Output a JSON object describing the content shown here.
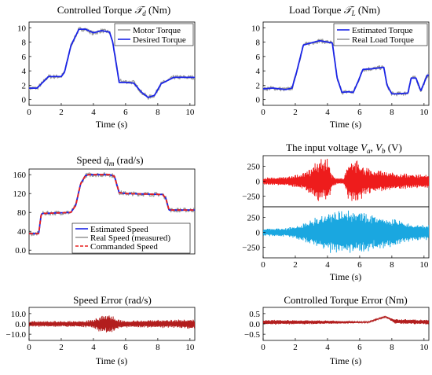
{
  "chart_data": [
    {
      "id": "controlled-torque",
      "type": "line",
      "title": "Controlled Torque 𝒯d (Nm)",
      "xlabel": "Time (s)",
      "ylabel": "",
      "xlim": [
        0,
        10.3
      ],
      "ylim": [
        -0.8,
        10.8
      ],
      "xticks": [
        "0",
        "2",
        "4",
        "6",
        "8",
        "10"
      ],
      "yticks": [
        "0",
        "2",
        "4",
        "6",
        "8",
        "10"
      ],
      "legend": "top-right",
      "grid": false,
      "series": [
        {
          "name": "Motor Torque",
          "color": "#9a9a9a",
          "noisy": true,
          "x": [
            0,
            0.5,
            0.9,
            1.2,
            2.0,
            2.2,
            2.6,
            3.1,
            3.5,
            4.0,
            4.5,
            5.0,
            5.2,
            5.6,
            6.0,
            6.5,
            7.0,
            7.4,
            7.8,
            8.2,
            9.0,
            10.3
          ],
          "y": [
            1.6,
            1.6,
            2.5,
            3.2,
            3.2,
            3.8,
            7.5,
            9.8,
            9.8,
            9.2,
            9.6,
            9.4,
            8.0,
            2.6,
            2.5,
            2.4,
            1.0,
            0.3,
            0.6,
            2.2,
            3.1,
            3.1
          ]
        },
        {
          "name": "Desired Torque",
          "color": "#1a24e6",
          "noisy": false,
          "x": [
            0,
            0.5,
            0.9,
            1.2,
            2.0,
            2.2,
            2.6,
            3.1,
            3.5,
            4.0,
            4.5,
            5.0,
            5.2,
            5.6,
            6.0,
            6.5,
            7.0,
            7.4,
            7.8,
            8.2,
            9.0,
            10.3
          ],
          "y": [
            1.6,
            1.6,
            2.5,
            3.2,
            3.2,
            3.8,
            7.5,
            9.8,
            9.8,
            9.3,
            9.6,
            9.4,
            8.0,
            2.4,
            2.4,
            2.3,
            1.0,
            0.3,
            0.6,
            2.2,
            3.1,
            3.1
          ]
        }
      ]
    },
    {
      "id": "load-torque",
      "type": "line",
      "title": "Load Torque 𝒯L (Nm)",
      "xlabel": "Time (s)",
      "ylabel": "",
      "xlim": [
        0,
        10.3
      ],
      "ylim": [
        -0.8,
        10.8
      ],
      "xticks": [
        "0",
        "2",
        "4",
        "6",
        "8",
        "10"
      ],
      "yticks": [
        "0",
        "2",
        "4",
        "6",
        "8",
        "10"
      ],
      "legend": "top-right",
      "grid": false,
      "series": [
        {
          "name": "Estimated Torque",
          "color": "#1a24e6",
          "noisy": false,
          "x": [
            0,
            0.6,
            1.4,
            1.8,
            2.1,
            2.5,
            3.5,
            4.3,
            4.6,
            4.9,
            5.3,
            5.6,
            5.9,
            6.2,
            6.8,
            7.5,
            7.7,
            8.0,
            8.3,
            9.0,
            9.2,
            9.5,
            9.8,
            10.2,
            10.3
          ],
          "y": [
            1.5,
            1.6,
            1.4,
            1.6,
            4.0,
            7.6,
            8.2,
            7.9,
            3.0,
            1.0,
            1.1,
            1.0,
            2.5,
            4.2,
            4.3,
            4.5,
            2.0,
            0.8,
            0.8,
            0.9,
            3.0,
            3.0,
            1.2,
            3.4,
            3.4
          ]
        },
        {
          "name": "Real Load Torque",
          "color": "#9a9a9a",
          "noisy": true,
          "x": [
            0,
            0.6,
            1.4,
            1.8,
            2.1,
            2.5,
            3.5,
            4.3,
            4.6,
            4.9,
            5.3,
            5.6,
            5.9,
            6.2,
            6.8,
            7.5,
            7.7,
            8.0,
            8.3,
            9.0,
            9.2,
            9.5,
            9.8,
            10.2,
            10.3
          ],
          "y": [
            1.5,
            1.6,
            1.4,
            1.6,
            4.0,
            7.6,
            8.2,
            7.9,
            3.0,
            1.0,
            1.1,
            1.0,
            2.5,
            4.2,
            4.3,
            4.5,
            2.0,
            0.8,
            0.8,
            0.9,
            3.0,
            3.0,
            1.2,
            3.4,
            3.4
          ]
        }
      ]
    },
    {
      "id": "speed",
      "type": "line",
      "title": "Speed q̇m (rad/s)",
      "xlabel": "Time (s)",
      "ylabel": "",
      "xlim": [
        0,
        10.3
      ],
      "ylim": [
        -8,
        172
      ],
      "xticks": [
        "0",
        "2",
        "4",
        "6",
        "8",
        "10"
      ],
      "yticks": [
        "0.0",
        "40",
        "80",
        "120",
        "160"
      ],
      "ytick_values": [
        0,
        40,
        80,
        120,
        160
      ],
      "legend": "bottom-right",
      "grid": false,
      "series": [
        {
          "name": "Estimated Speed",
          "color": "#1a24e6",
          "noisy": false,
          "x": [
            0,
            0.6,
            0.75,
            0.85,
            1.0,
            2.6,
            2.9,
            3.2,
            3.5,
            3.7,
            5.0,
            5.3,
            5.6,
            6.0,
            8.3,
            8.5,
            8.7,
            10.3
          ],
          "y": [
            35,
            35,
            75,
            78,
            78,
            80,
            95,
            140,
            158,
            160,
            160,
            157,
            122,
            120,
            118,
            110,
            85,
            85
          ]
        },
        {
          "name": "Real Speed (measured)",
          "color": "#9a9a9a",
          "noisy": true,
          "x": [
            0,
            0.6,
            0.75,
            0.85,
            1.0,
            2.6,
            2.9,
            3.2,
            3.5,
            3.7,
            5.0,
            5.3,
            5.6,
            6.0,
            8.3,
            8.5,
            8.7,
            10.3
          ],
          "y": [
            35,
            35,
            75,
            78,
            78,
            80,
            95,
            140,
            158,
            160,
            160,
            157,
            122,
            120,
            118,
            110,
            85,
            85
          ]
        },
        {
          "name": "Commanded Speed",
          "color": "#e8201e",
          "dashed": true,
          "noisy": false,
          "x": [
            0,
            0.6,
            0.75,
            0.85,
            1.0,
            2.6,
            2.9,
            3.2,
            3.5,
            3.7,
            5.0,
            5.3,
            5.6,
            6.0,
            8.3,
            8.5,
            8.7,
            10.3
          ],
          "y": [
            35,
            35,
            75,
            78,
            78,
            80,
            95,
            140,
            158,
            160,
            160,
            157,
            122,
            120,
            118,
            110,
            85,
            85
          ]
        }
      ]
    },
    {
      "id": "input-voltage-a",
      "type": "line",
      "title": "The input voltage Va, Vb (V)",
      "xlabel": "",
      "xlim": [
        0,
        10.3
      ],
      "ylim": [
        -430,
        430
      ],
      "yticks": [
        "250",
        "0",
        "−250"
      ],
      "ytick_values": [
        250,
        0,
        -250
      ],
      "series": [
        {
          "name": "Va",
          "color": "#ee1c1c",
          "envelope_t": [
            0,
            1.5,
            2.5,
            3.0,
            3.5,
            4.0,
            4.3,
            4.6,
            5.0,
            5.3,
            5.8,
            6.5,
            8.0,
            9.0,
            10.3
          ],
          "envelope_a": [
            60,
            80,
            150,
            250,
            380,
            380,
            120,
            50,
            50,
            380,
            380,
            220,
            150,
            130,
            120
          ]
        }
      ]
    },
    {
      "id": "input-voltage-b",
      "type": "line",
      "xlabel": "Time (s)",
      "xlim": [
        0,
        10.3
      ],
      "ylim": [
        -430,
        430
      ],
      "xticks": [
        "0",
        "2",
        "4",
        "6",
        "8",
        "10"
      ],
      "yticks": [
        "250",
        "0",
        "−250"
      ],
      "ytick_values": [
        250,
        0,
        -250
      ],
      "series": [
        {
          "name": "Vb",
          "color": "#1aa7e0",
          "envelope_t": [
            0,
            1.5,
            2.5,
            3.5,
            4.5,
            5.0,
            5.5,
            6.0,
            6.5,
            7.5,
            8.5,
            9.0,
            10.3
          ],
          "envelope_a": [
            60,
            80,
            150,
            300,
            370,
            380,
            370,
            350,
            330,
            300,
            220,
            160,
            130
          ]
        }
      ]
    },
    {
      "id": "speed-error",
      "type": "line",
      "title": "Speed Error (rad/s)",
      "xlabel": "Time (s)",
      "xlim": [
        0,
        10.3
      ],
      "ylim": [
        -16,
        16
      ],
      "xticks": [
        "0",
        "2",
        "4",
        "6",
        "8",
        "10"
      ],
      "yticks": [
        "10.0",
        "0.0",
        "−10.0"
      ],
      "ytick_values": [
        10,
        0,
        -10
      ],
      "series": [
        {
          "name": "Speed Error",
          "color": "#b21d1d",
          "envelope_t": [
            0,
            1.0,
            2.5,
            3.0,
            3.5,
            4.0,
            4.5,
            5.0,
            5.3,
            5.6,
            6.0,
            7.0,
            8.0,
            9.0,
            10.0,
            10.3
          ],
          "envelope_a": [
            3,
            3,
            3,
            3,
            3.5,
            4,
            9,
            10,
            8,
            4,
            3.5,
            3.5,
            4,
            4,
            5,
            5
          ]
        }
      ]
    },
    {
      "id": "torque-error",
      "type": "line",
      "title": "Controlled Torque Error (Nm)",
      "xlabel": "Time (s)",
      "xlim": [
        0,
        10.3
      ],
      "ylim": [
        -0.8,
        0.8
      ],
      "xticks": [
        "0",
        "2",
        "4",
        "6",
        "8",
        "10"
      ],
      "yticks": [
        "0.5",
        "0.0",
        "−0.5"
      ],
      "ytick_values": [
        0.5,
        0,
        -0.5
      ],
      "series": [
        {
          "name": "Torque Error",
          "color": "#b21d1d",
          "base_x": [
            0,
            6.5,
            7.6,
            8.2,
            10.3
          ],
          "base_y": [
            0.08,
            0.08,
            0.35,
            0.12,
            0.08
          ],
          "envelope_t": [
            0,
            3,
            5,
            6.5,
            7.6,
            8.2,
            10.3
          ],
          "envelope_a": [
            0.12,
            0.1,
            0.08,
            0.02,
            0.02,
            0.12,
            0.12
          ]
        }
      ]
    }
  ]
}
